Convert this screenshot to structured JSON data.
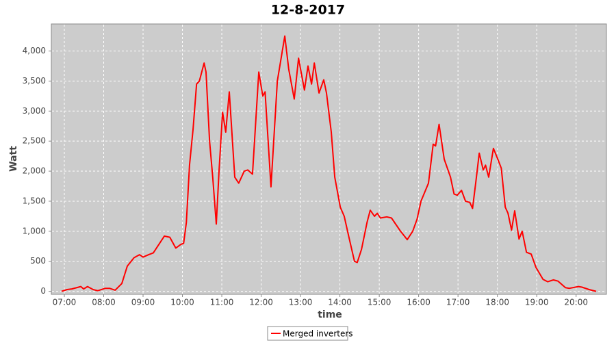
{
  "chart_data": {
    "type": "line",
    "title": "12-8-2017",
    "x_label": "time",
    "y_label": "Watt",
    "x": [
      6.93,
      7.07,
      7.19,
      7.42,
      7.49,
      7.59,
      7.73,
      7.85,
      8.04,
      8.15,
      8.29,
      8.46,
      8.6,
      8.77,
      8.91,
      9.0,
      9.14,
      9.26,
      9.42,
      9.54,
      9.68,
      9.83,
      9.96,
      10.03,
      10.1,
      10.18,
      10.27,
      10.36,
      10.43,
      10.55,
      10.6,
      10.69,
      10.77,
      10.86,
      10.93,
      11.02,
      11.1,
      11.19,
      11.33,
      11.43,
      11.57,
      11.66,
      11.78,
      11.94,
      12.04,
      12.1,
      12.25,
      12.41,
      12.6,
      12.7,
      12.84,
      12.95,
      13.1,
      13.19,
      13.28,
      13.35,
      13.47,
      13.59,
      13.66,
      13.78,
      13.87,
      14.01,
      14.11,
      14.23,
      14.37,
      14.44,
      14.55,
      14.69,
      14.77,
      14.88,
      14.95,
      15.03,
      15.19,
      15.31,
      15.54,
      15.71,
      15.85,
      15.96,
      16.06,
      16.25,
      16.37,
      16.43,
      16.52,
      16.65,
      16.81,
      16.9,
      16.98,
      17.09,
      17.19,
      17.3,
      17.37,
      17.45,
      17.54,
      17.64,
      17.7,
      17.78,
      17.9,
      18.01,
      18.1,
      18.2,
      18.27,
      18.36,
      18.44,
      18.55,
      18.63,
      18.74,
      18.86,
      18.98,
      19.16,
      19.28,
      19.42,
      19.54,
      19.73,
      19.83,
      20.06,
      20.15,
      20.33,
      20.51
    ],
    "series": [
      {
        "name": "Merged inverters",
        "color": "#ff0000",
        "values": [
          0,
          30,
          40,
          80,
          40,
          80,
          30,
          10,
          50,
          50,
          20,
          130,
          420,
          560,
          610,
          570,
          610,
          640,
          800,
          920,
          900,
          720,
          780,
          800,
          1150,
          2100,
          2700,
          3450,
          3500,
          3800,
          3650,
          2500,
          1900,
          1120,
          2000,
          2980,
          2650,
          3320,
          1900,
          1800,
          2000,
          2020,
          1950,
          3650,
          3250,
          3320,
          1740,
          3500,
          4250,
          3700,
          3200,
          3880,
          3350,
          3750,
          3450,
          3800,
          3300,
          3520,
          3300,
          2650,
          1900,
          1400,
          1250,
          900,
          500,
          480,
          700,
          1150,
          1350,
          1250,
          1300,
          1220,
          1240,
          1220,
          1000,
          860,
          1000,
          1200,
          1500,
          1800,
          2450,
          2420,
          2780,
          2200,
          1900,
          1620,
          1600,
          1680,
          1500,
          1480,
          1380,
          1800,
          2300,
          2020,
          2100,
          1900,
          2380,
          2200,
          2050,
          1400,
          1300,
          1020,
          1340,
          870,
          1000,
          650,
          620,
          400,
          200,
          160,
          190,
          170,
          60,
          50,
          80,
          70,
          30,
          0
        ]
      }
    ],
    "xlim": [
      6.67,
      20.77
    ],
    "ylim": [
      -50,
      4450
    ],
    "xticks": [
      {
        "value": 7,
        "label": "07:00"
      },
      {
        "value": 8,
        "label": "08:00"
      },
      {
        "value": 9,
        "label": "09:00"
      },
      {
        "value": 10,
        "label": "10:00"
      },
      {
        "value": 11,
        "label": "11:00"
      },
      {
        "value": 12,
        "label": "12:00"
      },
      {
        "value": 13,
        "label": "13:00"
      },
      {
        "value": 14,
        "label": "14:00"
      },
      {
        "value": 15,
        "label": "15:00"
      },
      {
        "value": 16,
        "label": "16:00"
      },
      {
        "value": 17,
        "label": "17:00"
      },
      {
        "value": 18,
        "label": "18:00"
      },
      {
        "value": 19,
        "label": "19:00"
      },
      {
        "value": 20,
        "label": "20:00"
      }
    ],
    "yticks": [
      0,
      500,
      {
        "value": 1000,
        "label": "1,000"
      },
      {
        "value": 1500,
        "label": "1,500"
      },
      {
        "value": 2000,
        "label": "2,000"
      },
      {
        "value": 2500,
        "label": "2,500"
      },
      {
        "value": 3000,
        "label": "3,000"
      },
      {
        "value": 3500,
        "label": "3,500"
      },
      {
        "value": 4000,
        "label": "4,000"
      }
    ],
    "grid": true,
    "legend": "bottom"
  }
}
